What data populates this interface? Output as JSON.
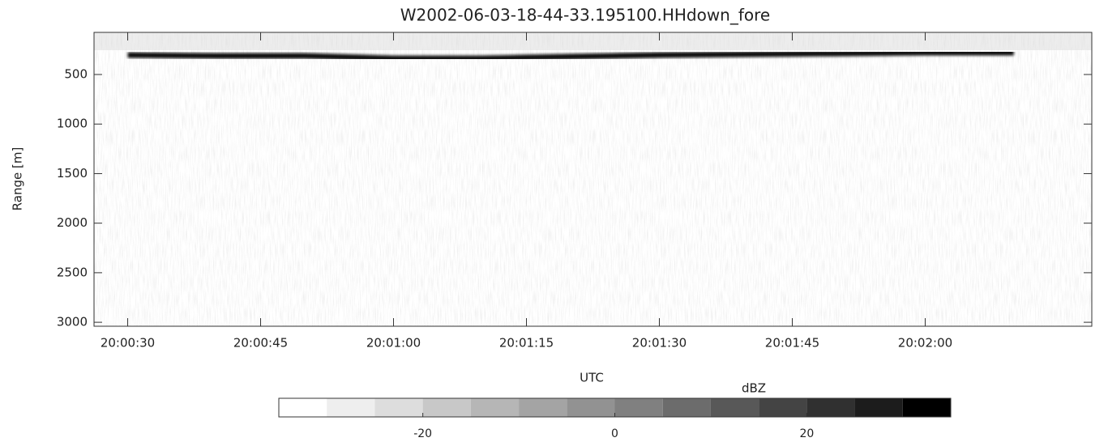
{
  "chart_data": {
    "type": "radar-echo",
    "title": "W2002-06-03-18-44-33.195100.HHdown_fore",
    "x_label": "UTC",
    "y_label": "Range [m]",
    "x": [
      72030,
      72040,
      72050,
      72060,
      72070,
      72080,
      72090,
      72100,
      72110,
      72120,
      72130
    ],
    "values": [
      304,
      312,
      312,
      337,
      337,
      320,
      304,
      296,
      288,
      279,
      279
    ],
    "color": "#111111",
    "xlim": [
      72026.2,
      72138.8
    ],
    "xticks": [
      {
        "value": 72030,
        "label": "20:00:30"
      },
      {
        "value": 72045,
        "label": "20:00:45"
      },
      {
        "value": 72060,
        "label": "20:01:00"
      },
      {
        "value": 72075,
        "label": "20:01:15"
      },
      {
        "value": 72090,
        "label": "20:01:30"
      },
      {
        "value": 72105,
        "label": "20:01:45"
      },
      {
        "value": 72120,
        "label": "20:02:00"
      }
    ],
    "ylim": [
      3040,
      75
    ],
    "yticks": [
      500,
      1000,
      1500,
      2000,
      2500,
      3000
    ],
    "colorbar": {
      "label": "dBZ",
      "levels": [
        -35,
        -30,
        -25,
        -20,
        -15,
        -10,
        -5,
        0,
        5,
        10,
        15,
        20,
        25,
        30,
        35
      ],
      "colors": [
        "#ffffff",
        "#eeeeee",
        "#dddddd",
        "#c8c8c8",
        "#b6b6b6",
        "#a4a4a4",
        "#929292",
        "#808080",
        "#6c6c6c",
        "#585858",
        "#444444",
        "#303030",
        "#1c1c1c",
        "#000000"
      ],
      "ticks": [
        -20,
        0,
        20
      ]
    }
  }
}
